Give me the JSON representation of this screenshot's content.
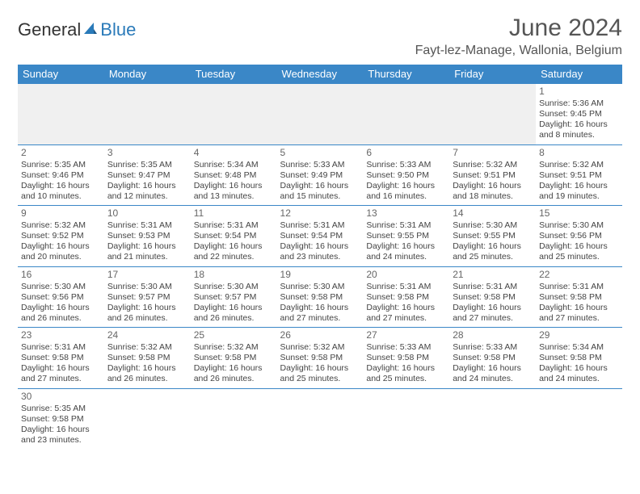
{
  "logo": {
    "general": "General",
    "blue": "Blue"
  },
  "title": "June 2024",
  "location": "Fayt-lez-Manage, Wallonia, Belgium",
  "colors": {
    "header_bg": "#3a87c7",
    "header_fg": "#ffffff",
    "cell_border": "#3a87c7",
    "blank_bg": "#f0f0f0",
    "logo_blue": "#2a7ab9"
  },
  "dayNames": [
    "Sunday",
    "Monday",
    "Tuesday",
    "Wednesday",
    "Thursday",
    "Friday",
    "Saturday"
  ],
  "weeks": [
    [
      null,
      null,
      null,
      null,
      null,
      null,
      {
        "n": "1",
        "rise": "5:36 AM",
        "set": "9:45 PM",
        "dl": "16 hours and 8 minutes."
      }
    ],
    [
      {
        "n": "2",
        "rise": "5:35 AM",
        "set": "9:46 PM",
        "dl": "16 hours and 10 minutes."
      },
      {
        "n": "3",
        "rise": "5:35 AM",
        "set": "9:47 PM",
        "dl": "16 hours and 12 minutes."
      },
      {
        "n": "4",
        "rise": "5:34 AM",
        "set": "9:48 PM",
        "dl": "16 hours and 13 minutes."
      },
      {
        "n": "5",
        "rise": "5:33 AM",
        "set": "9:49 PM",
        "dl": "16 hours and 15 minutes."
      },
      {
        "n": "6",
        "rise": "5:33 AM",
        "set": "9:50 PM",
        "dl": "16 hours and 16 minutes."
      },
      {
        "n": "7",
        "rise": "5:32 AM",
        "set": "9:51 PM",
        "dl": "16 hours and 18 minutes."
      },
      {
        "n": "8",
        "rise": "5:32 AM",
        "set": "9:51 PM",
        "dl": "16 hours and 19 minutes."
      }
    ],
    [
      {
        "n": "9",
        "rise": "5:32 AM",
        "set": "9:52 PM",
        "dl": "16 hours and 20 minutes."
      },
      {
        "n": "10",
        "rise": "5:31 AM",
        "set": "9:53 PM",
        "dl": "16 hours and 21 minutes."
      },
      {
        "n": "11",
        "rise": "5:31 AM",
        "set": "9:54 PM",
        "dl": "16 hours and 22 minutes."
      },
      {
        "n": "12",
        "rise": "5:31 AM",
        "set": "9:54 PM",
        "dl": "16 hours and 23 minutes."
      },
      {
        "n": "13",
        "rise": "5:31 AM",
        "set": "9:55 PM",
        "dl": "16 hours and 24 minutes."
      },
      {
        "n": "14",
        "rise": "5:30 AM",
        "set": "9:55 PM",
        "dl": "16 hours and 25 minutes."
      },
      {
        "n": "15",
        "rise": "5:30 AM",
        "set": "9:56 PM",
        "dl": "16 hours and 25 minutes."
      }
    ],
    [
      {
        "n": "16",
        "rise": "5:30 AM",
        "set": "9:56 PM",
        "dl": "16 hours and 26 minutes."
      },
      {
        "n": "17",
        "rise": "5:30 AM",
        "set": "9:57 PM",
        "dl": "16 hours and 26 minutes."
      },
      {
        "n": "18",
        "rise": "5:30 AM",
        "set": "9:57 PM",
        "dl": "16 hours and 26 minutes."
      },
      {
        "n": "19",
        "rise": "5:30 AM",
        "set": "9:58 PM",
        "dl": "16 hours and 27 minutes."
      },
      {
        "n": "20",
        "rise": "5:31 AM",
        "set": "9:58 PM",
        "dl": "16 hours and 27 minutes."
      },
      {
        "n": "21",
        "rise": "5:31 AM",
        "set": "9:58 PM",
        "dl": "16 hours and 27 minutes."
      },
      {
        "n": "22",
        "rise": "5:31 AM",
        "set": "9:58 PM",
        "dl": "16 hours and 27 minutes."
      }
    ],
    [
      {
        "n": "23",
        "rise": "5:31 AM",
        "set": "9:58 PM",
        "dl": "16 hours and 27 minutes."
      },
      {
        "n": "24",
        "rise": "5:32 AM",
        "set": "9:58 PM",
        "dl": "16 hours and 26 minutes."
      },
      {
        "n": "25",
        "rise": "5:32 AM",
        "set": "9:58 PM",
        "dl": "16 hours and 26 minutes."
      },
      {
        "n": "26",
        "rise": "5:32 AM",
        "set": "9:58 PM",
        "dl": "16 hours and 25 minutes."
      },
      {
        "n": "27",
        "rise": "5:33 AM",
        "set": "9:58 PM",
        "dl": "16 hours and 25 minutes."
      },
      {
        "n": "28",
        "rise": "5:33 AM",
        "set": "9:58 PM",
        "dl": "16 hours and 24 minutes."
      },
      {
        "n": "29",
        "rise": "5:34 AM",
        "set": "9:58 PM",
        "dl": "16 hours and 24 minutes."
      }
    ],
    [
      {
        "n": "30",
        "rise": "5:35 AM",
        "set": "9:58 PM",
        "dl": "16 hours and 23 minutes."
      },
      null,
      null,
      null,
      null,
      null,
      null
    ]
  ],
  "labels": {
    "sunrise": "Sunrise: ",
    "sunset": "Sunset: ",
    "daylight": "Daylight: "
  }
}
